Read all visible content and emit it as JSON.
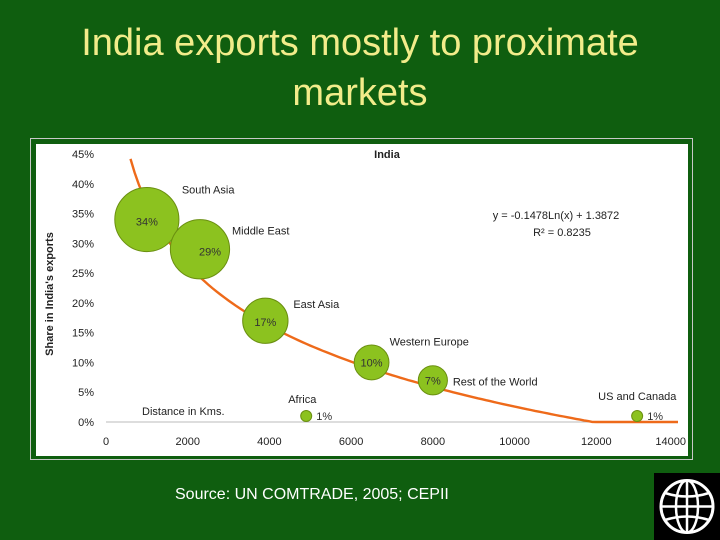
{
  "slide": {
    "title": "India exports  mostly to proximate\nmarkets",
    "source": "Source: UN COMTRADE, 2005; CEPII",
    "background_color": "#0f5e0f",
    "title_color": "#f2ec8a"
  },
  "chart_data": {
    "type": "scatter",
    "title": "India",
    "xlabel": "",
    "ylabel": "Share in India's exports",
    "xlim": [
      0,
      14000
    ],
    "ylim": [
      0,
      45
    ],
    "x_ticks": [
      "0",
      "2000",
      "4000",
      "6000",
      "8000",
      "10000",
      "12000",
      "14000"
    ],
    "y_ticks": [
      "0%",
      "5%",
      "10%",
      "15%",
      "20%",
      "25%",
      "30%",
      "35%",
      "40%",
      "45%"
    ],
    "x_axis_note": "Distance in Kms.",
    "grid": false,
    "bubble_color": "#8cc21f",
    "trend_color": "#ee6a1a",
    "points": [
      {
        "name": "South Asia",
        "x": 1000,
        "y": 34,
        "label": "34%",
        "size": 34
      },
      {
        "name": "Middle East",
        "x": 2300,
        "y": 29,
        "label": "29%",
        "size": 29
      },
      {
        "name": "East Asia",
        "x": 3900,
        "y": 17,
        "label": "17%",
        "size": 17
      },
      {
        "name": "Western Europe",
        "x": 6500,
        "y": 10,
        "label": "10%",
        "size": 10
      },
      {
        "name": "Rest of the World",
        "x": 8000,
        "y": 7,
        "label": "7%",
        "size": 7
      },
      {
        "name": "Africa",
        "x": 4900,
        "y": 1,
        "label": "1%",
        "size": 1
      },
      {
        "name": "US and Canada",
        "x": 13000,
        "y": 1,
        "label": "1%",
        "size": 1
      }
    ],
    "trendline": {
      "equation": "y = -0.1478Ln(x) + 1.3872",
      "r_squared": "R² = 0.8235",
      "a": -0.1478,
      "b": 1.3872
    }
  }
}
